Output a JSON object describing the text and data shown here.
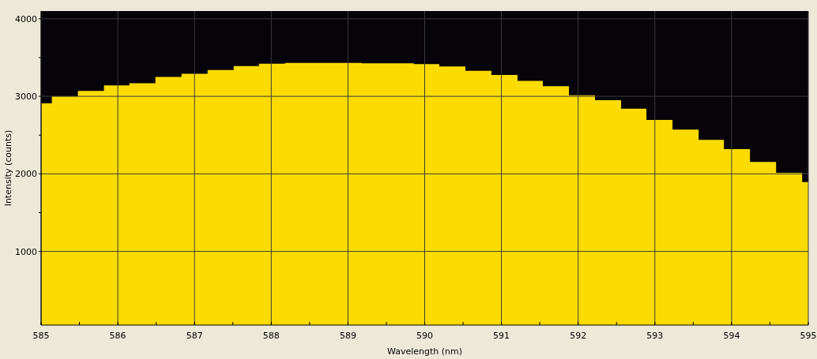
{
  "chart_data": {
    "type": "area",
    "xlabel": "Wavelength (nm)",
    "ylabel": "Intensity (counts)",
    "x": [
      585,
      585.14,
      585.14,
      585.48,
      585.48,
      585.82,
      585.82,
      586.15,
      586.15,
      586.49,
      586.49,
      586.83,
      586.83,
      587.17,
      587.17,
      587.51,
      587.51,
      587.84,
      587.84,
      588.18,
      588.18,
      588.52,
      588.52,
      588.85,
      588.85,
      589.18,
      589.18,
      589.52,
      589.52,
      589.86,
      589.86,
      590.19,
      590.19,
      590.53,
      590.53,
      590.87,
      590.87,
      591.21,
      591.21,
      591.54,
      591.54,
      591.88,
      591.88,
      592.22,
      592.22,
      592.56,
      592.56,
      592.89,
      592.89,
      593.23,
      593.23,
      593.57,
      593.57,
      593.9,
      593.9,
      594.24,
      594.24,
      594.58,
      594.58,
      594.92,
      594.92,
      595
    ],
    "series": [
      {
        "color": "#fcdc00",
        "values": [
          2910,
          2910,
          3000,
          3000,
          3070,
          3070,
          3140,
          3140,
          3170,
          3170,
          3250,
          3250,
          3290,
          3290,
          3340,
          3340,
          3390,
          3390,
          3420,
          3420,
          3430,
          3430,
          3430,
          3430,
          3430,
          3430,
          3425,
          3425,
          3425,
          3425,
          3415,
          3415,
          3385,
          3385,
          3330,
          3330,
          3275,
          3275,
          3200,
          3200,
          3130,
          3130,
          3015,
          3015,
          2950,
          2950,
          2840,
          2840,
          2695,
          2695,
          2570,
          2570,
          2440,
          2440,
          2320,
          2320,
          2155,
          2155,
          2015,
          2015,
          1895,
          1895
        ]
      }
    ],
    "xlim": [
      585,
      595
    ],
    "xticks": [
      585,
      {
        "value": 585.5,
        "label": null
      },
      586,
      {
        "value": 586.5,
        "label": null
      },
      587,
      {
        "value": 587.5,
        "label": null
      },
      588,
      {
        "value": 588.5,
        "label": null
      },
      589,
      {
        "value": 589.5,
        "label": null
      },
      590,
      {
        "value": 590.5,
        "label": null
      },
      591,
      {
        "value": 591.5,
        "label": null
      },
      592,
      {
        "value": 592.5,
        "label": null
      },
      593,
      {
        "value": 593.5,
        "label": null
      },
      594,
      {
        "value": 594.5,
        "label": null
      },
      595
    ],
    "ylim": [
      50,
      4100
    ],
    "yticks": [
      1000,
      {
        "value": 1500,
        "label": null
      },
      2000,
      {
        "value": 2500,
        "label": null
      },
      3000,
      {
        "value": 3500,
        "label": null
      },
      4000
    ],
    "grid": true
  }
}
